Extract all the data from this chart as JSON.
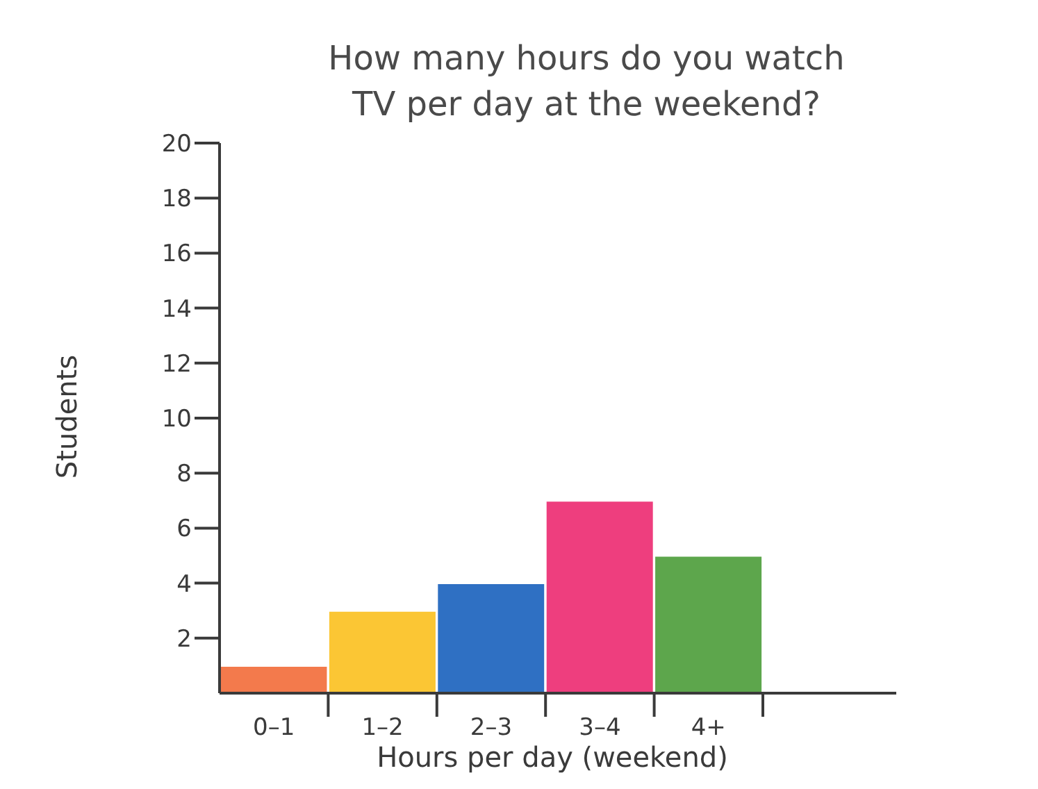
{
  "chart_data": {
    "type": "bar",
    "title": "How many hours do you watch TV per day at the weekend?",
    "xlabel": "Hours per day (weekend)",
    "ylabel": "Students",
    "categories": [
      "0–1",
      "1–2",
      "2–3",
      "3–4",
      "4+"
    ],
    "values": [
      1,
      3,
      4,
      7,
      5
    ],
    "colors": [
      "#f37a4c",
      "#fbc634",
      "#2f70c3",
      "#ee3e7e",
      "#5da64c"
    ],
    "ylim": [
      0,
      20
    ],
    "yticks": [
      2,
      4,
      6,
      8,
      10,
      12,
      14,
      16,
      18,
      20
    ]
  }
}
